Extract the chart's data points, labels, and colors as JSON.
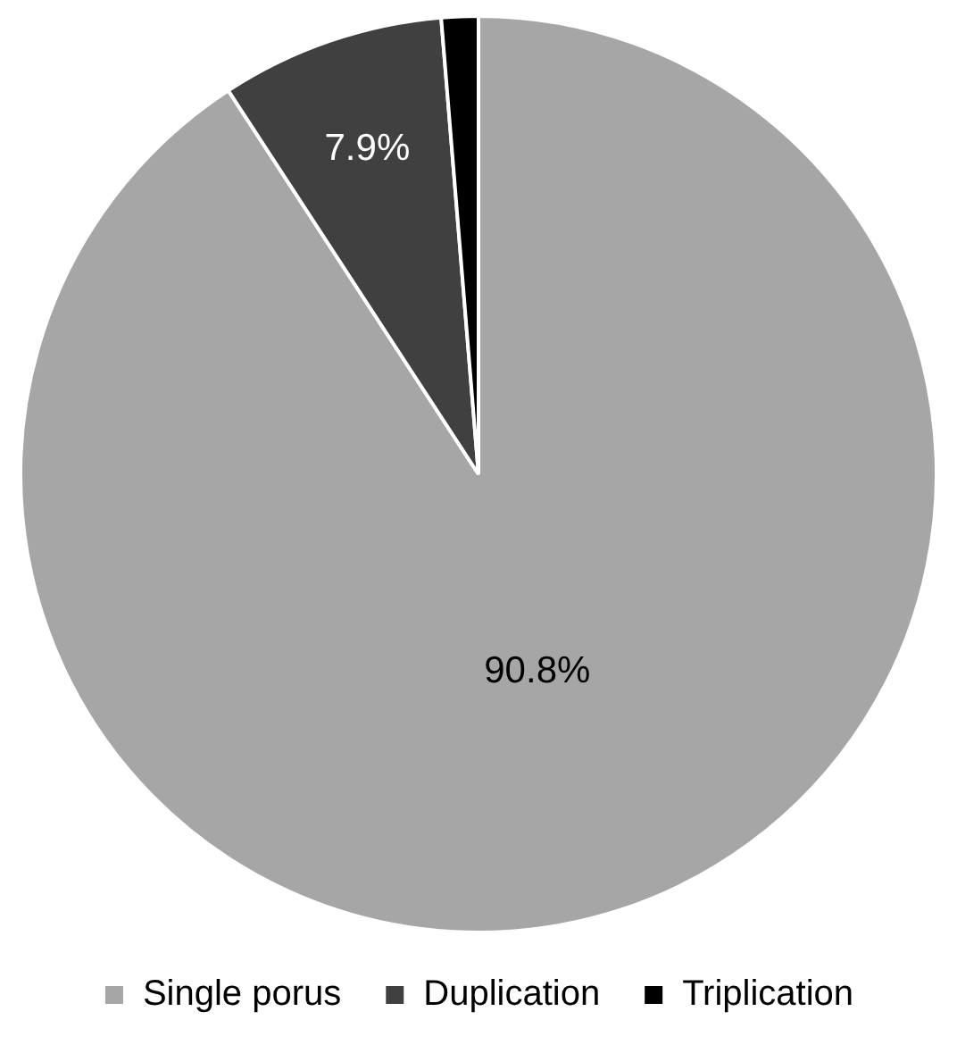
{
  "chart_data": {
    "type": "pie",
    "categories": [
      "Single porus",
      "Duplication",
      "Triplication"
    ],
    "values": [
      90.8,
      7.9,
      1.3
    ],
    "colors": [
      "#a6a6a6",
      "#404040",
      "#000000"
    ],
    "value_labels": [
      "90.8%",
      "7.9%",
      null
    ],
    "legend": "bottom"
  }
}
